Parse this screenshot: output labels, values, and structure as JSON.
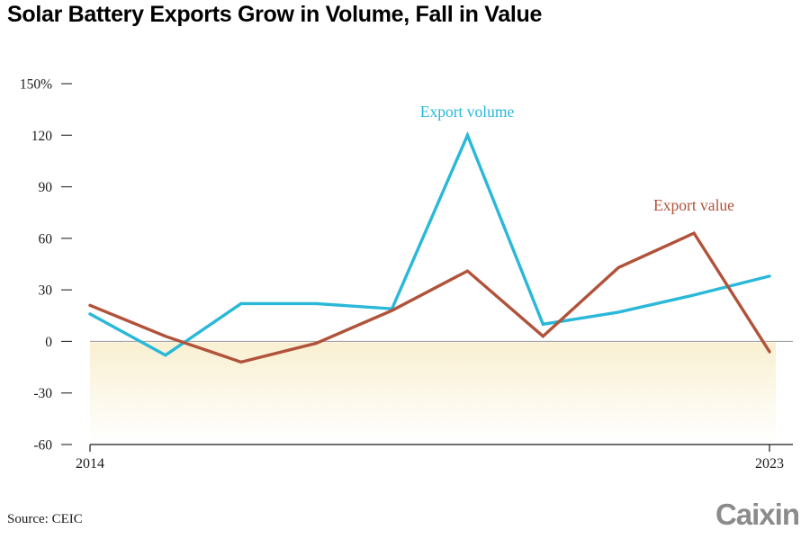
{
  "title": "Solar Battery Exports Grow in Volume, Fall in Value",
  "source": "Source: CEIC",
  "logo": "Caixin",
  "chart_data": {
    "type": "line",
    "x": [
      2014,
      2015,
      2016,
      2017,
      2018,
      2019,
      2020,
      2021,
      2022,
      2023
    ],
    "series": [
      {
        "name": "Export volume",
        "color": "#29b8d8",
        "values": [
          16,
          -8,
          22,
          22,
          19,
          120,
          10,
          17,
          27,
          38
        ]
      },
      {
        "name": "Export value",
        "color": "#b1523a",
        "values": [
          21,
          3,
          -12,
          -1,
          18,
          41,
          3,
          43,
          63,
          -6
        ]
      }
    ],
    "ylim": [
      -60,
      150
    ],
    "yticks": [
      150,
      120,
      90,
      60,
      30,
      0,
      -30,
      -60
    ],
    "ytick_labels": [
      "150%",
      "120",
      "90",
      "60",
      "30",
      "0",
      "-30",
      "-60"
    ],
    "xtick_labels": [
      "2014",
      "2023"
    ],
    "grid": false,
    "zero_line": true,
    "below_zero_fill": "#f9efcf",
    "legend_position": "inline-annotations",
    "annotation_colors": {
      "Export volume": "#29b8d8",
      "Export value": "#b1523a"
    }
  }
}
